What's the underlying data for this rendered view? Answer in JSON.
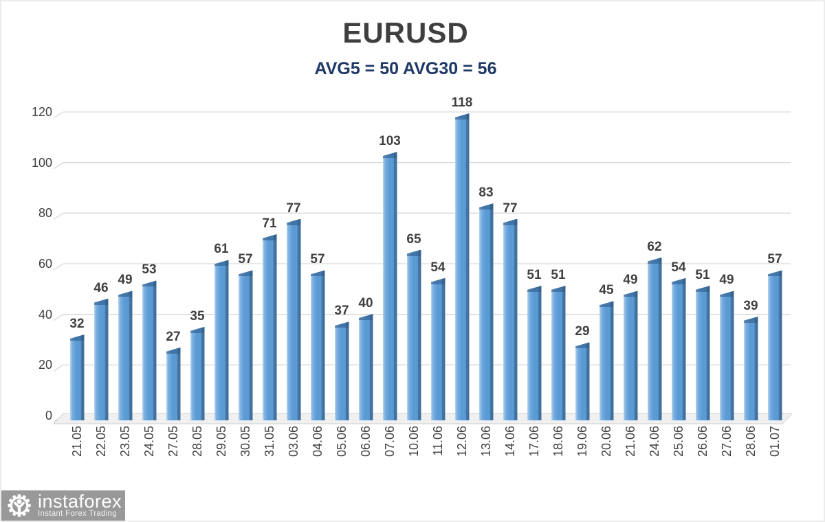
{
  "page": {
    "background": "#ffffff",
    "border_color": "#ececec"
  },
  "chart_data": {
    "type": "bar",
    "title": "EURUSD",
    "subtitle": "AVG5 = 50 AVG30 = 56",
    "avg5": 50,
    "avg30": 56,
    "categories": [
      "21.05",
      "22.05",
      "23.05",
      "24.05",
      "27.05",
      "28.05",
      "29.05",
      "30.05",
      "31.05",
      "03.06",
      "04.06",
      "05.06",
      "06.06",
      "07.06",
      "10.06",
      "11.06",
      "12.06",
      "13.06",
      "14.06",
      "17.06",
      "18.06",
      "19.06",
      "20.06",
      "21.06",
      "24.06",
      "25.06",
      "26.06",
      "27.06",
      "28.06",
      "01.07"
    ],
    "values": [
      32,
      46,
      49,
      53,
      27,
      35,
      61,
      57,
      71,
      77,
      57,
      37,
      40,
      103,
      65,
      54,
      118,
      83,
      77,
      51,
      51,
      29,
      45,
      49,
      62,
      54,
      51,
      49,
      39,
      57
    ],
    "ylim": [
      0,
      120
    ],
    "yticks": [
      0,
      20,
      40,
      60,
      80,
      100,
      120
    ],
    "grid": true,
    "legend": "none",
    "style_3d": true,
    "colors": {
      "bar_face": "#5b9bd5",
      "bar_face_light": "#b9d7f0",
      "bar_side": "#41719c",
      "bar_cap": "#2e5c8a",
      "gridline": "#d9d9d9",
      "floor_fill": "#f0f0f0",
      "floor_edge": "#d0d0d0",
      "axis_label": "#404040",
      "value_label": "#404040",
      "title": "#3f3f3f",
      "subtitle": "#1f3864"
    }
  },
  "watermark": {
    "brand": "instaforex",
    "tagline": "Instant Forex Trading",
    "bg_color": "#999999",
    "text_color": "#ffffff",
    "icon": "gear-person-logo"
  }
}
